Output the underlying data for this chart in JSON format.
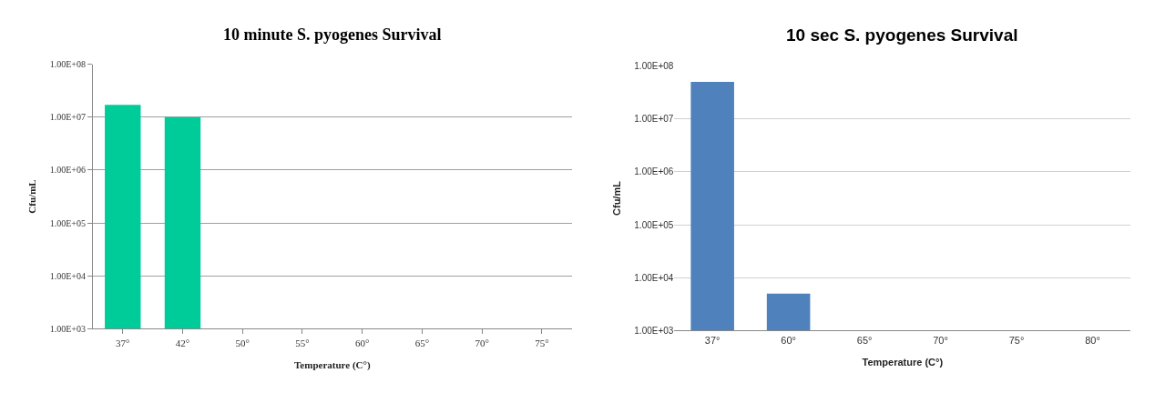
{
  "chart_data": [
    {
      "type": "bar",
      "title": "10 minute S. pyogenes Survival",
      "xlabel": "Temperature (C°)",
      "ylabel": "Cfu/mL",
      "categories": [
        "37°",
        "42°",
        "50°",
        "55°",
        "60°",
        "65°",
        "70°",
        "75°"
      ],
      "values": [
        17000000,
        10000000,
        null,
        null,
        null,
        null,
        null,
        null
      ],
      "color": "#00cc99",
      "log": true,
      "ylim": [
        1000,
        100000000
      ],
      "yticks": [
        {
          "value": 1000,
          "label": "1.00E+03"
        },
        {
          "value": 10000,
          "label": "1.00E+04"
        },
        {
          "value": 100000,
          "label": "1.00E+05"
        },
        {
          "value": 1000000,
          "label": "1.00E+06"
        },
        {
          "value": 10000000,
          "label": "1.00E+07"
        },
        {
          "value": 100000000,
          "label": "1.00E+08"
        }
      ],
      "grid": "y"
    },
    {
      "type": "bar",
      "title": "10 sec S. pyogenes Survival",
      "xlabel": "Temperature (C°)",
      "ylabel": "Cfu/mL",
      "categories": [
        "37°",
        "60°",
        "65°",
        "70°",
        "75°",
        "80°"
      ],
      "values": [
        50000000,
        5000,
        null,
        null,
        null,
        null
      ],
      "color": "#4f81bd",
      "log": true,
      "ylim": [
        1000,
        100000000
      ],
      "yticks": [
        {
          "value": 1000,
          "label": "1.00E+03"
        },
        {
          "value": 10000,
          "label": "1.00E+04"
        },
        {
          "value": 100000,
          "label": "1.00E+05"
        },
        {
          "value": 1000000,
          "label": "1.00E+06"
        },
        {
          "value": 10000000,
          "label": "1.00E+07"
        },
        {
          "value": 100000000,
          "label": "1.00E+08"
        }
      ],
      "grid": "y"
    }
  ]
}
